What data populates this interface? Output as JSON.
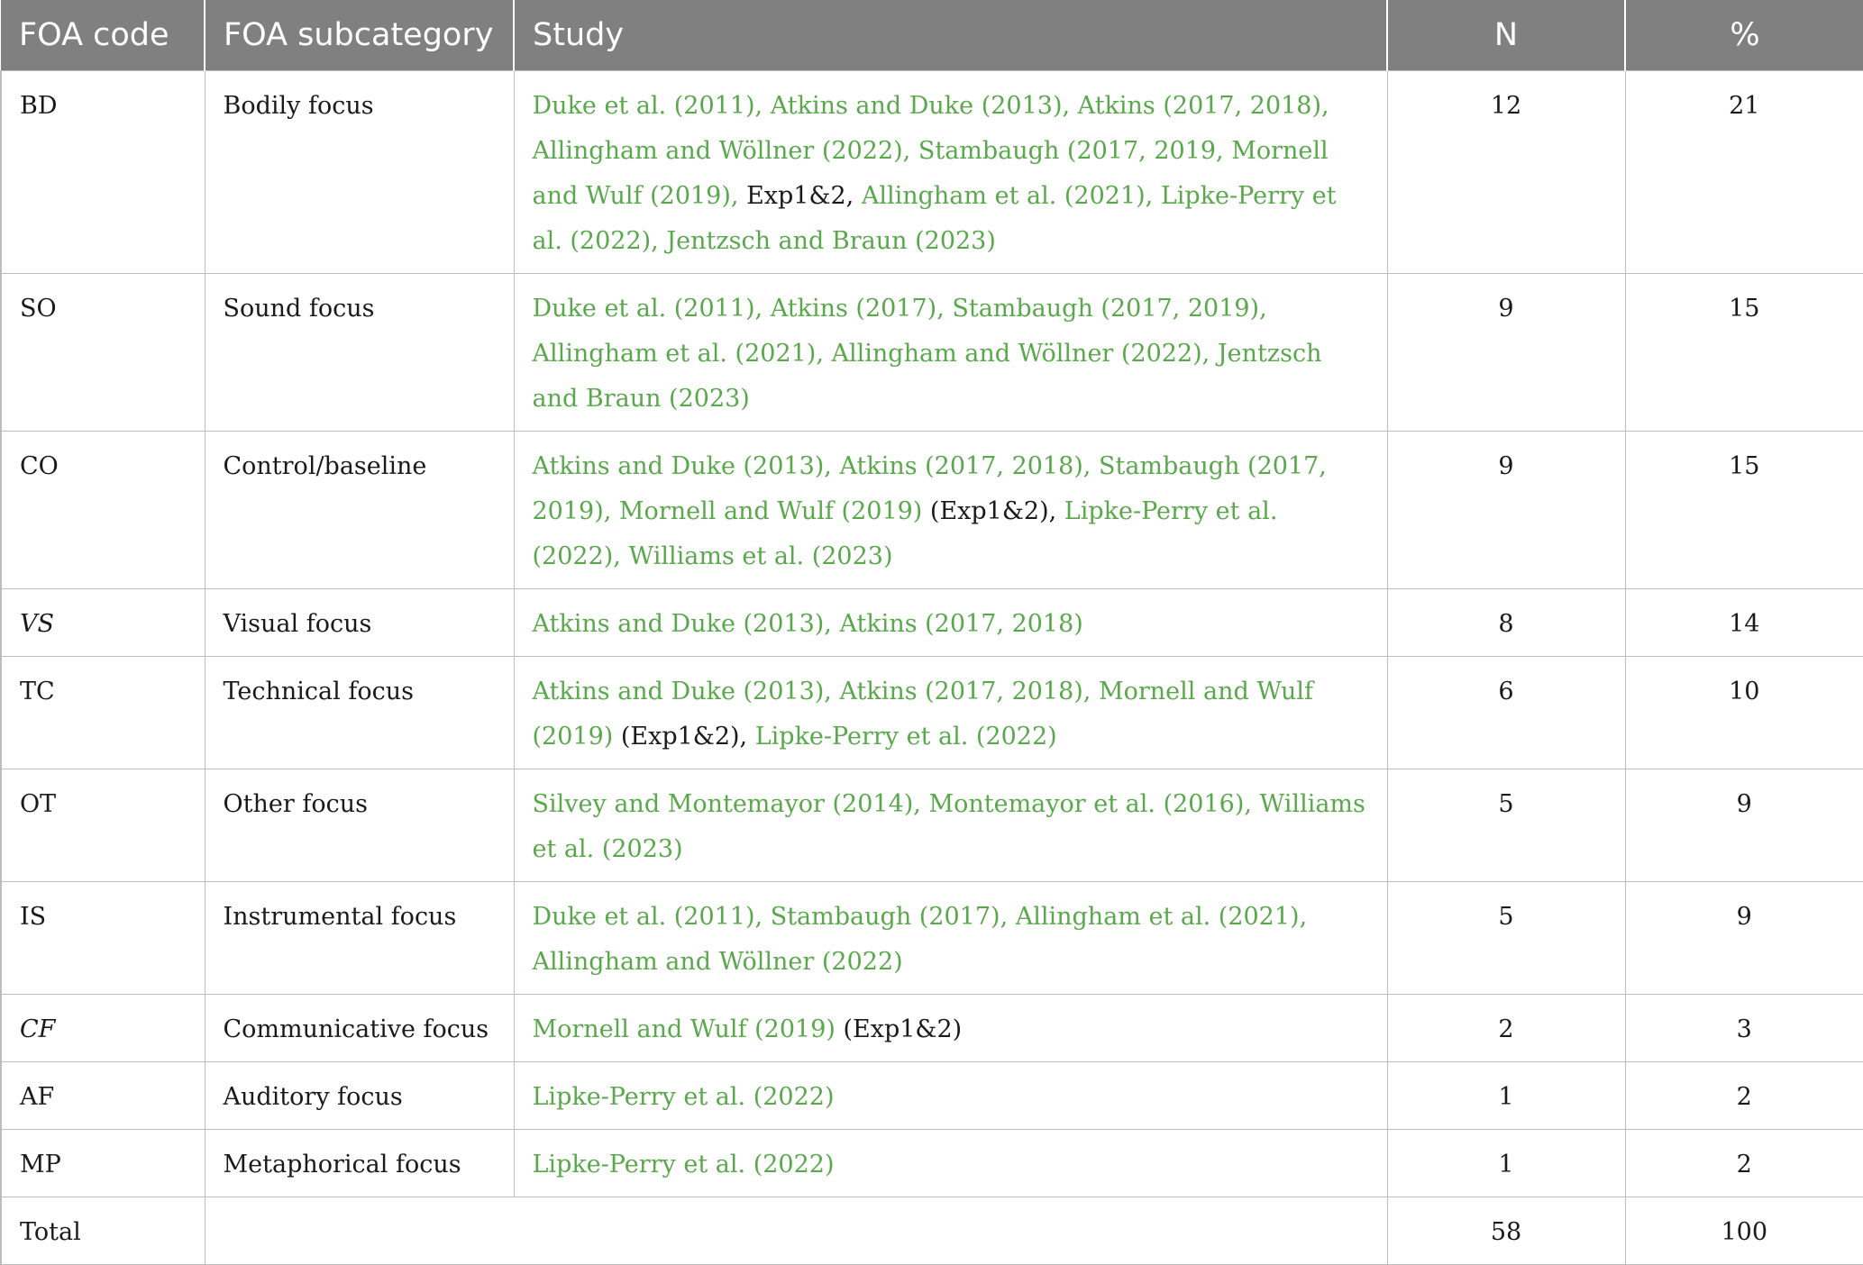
{
  "headers": {
    "code": "FOA code",
    "subcategory": "FOA subcategory",
    "study": "Study",
    "n": "N",
    "pct": "%"
  },
  "rows": [
    {
      "code": "BD",
      "subcategory": "Bodily focus",
      "study_ref1": "Duke et al. (2011), Atkins and Duke (2013), Atkins (2017, 2018), Allingham and Wöllner (2022), Stambaugh (2017, 2019, Mornell and Wulf (2019),",
      "study_plain1": " Exp1&2, ",
      "study_ref2": "Allingham et al. (2021), Lipke-Perry et al. (2022), Jentzsch and Braun (2023)",
      "n": "12",
      "pct": "21"
    },
    {
      "code": "SO",
      "subcategory": "Sound focus",
      "study_ref1": "Duke et al. (2011), Atkins (2017), Stambaugh (2017, 2019), Allingham et al. (2021), Allingham and Wöllner (2022), Jentzsch and Braun (2023)",
      "n": "9",
      "pct": "15"
    },
    {
      "code": "CO",
      "subcategory": "Control/baseline",
      "study_ref1": "Atkins and Duke (2013), Atkins (2017, 2018), Stambaugh (2017, 2019), Mornell and Wulf (2019)",
      "study_plain1": " (Exp1&2), ",
      "study_ref2": "Lipke-Perry et al. (2022), Williams et al. (2023)",
      "n": "9",
      "pct": "15"
    },
    {
      "code": "VS",
      "subcategory": "Visual focus",
      "study_ref1": "Atkins and Duke (2013), Atkins (2017, 2018)",
      "n": "8",
      "pct": "14"
    },
    {
      "code": "TC",
      "subcategory": "Technical focus",
      "study_ref1": "Atkins and Duke (2013), Atkins (2017, 2018), Mornell and Wulf (2019)",
      "study_plain1": " (Exp1&2), ",
      "study_ref2": "Lipke-Perry et al. (2022)",
      "n": "6",
      "pct": "10"
    },
    {
      "code": "OT",
      "subcategory": "Other focus",
      "study_ref1": "Silvey and Montemayor (2014), Montemayor et al. (2016), Williams et al. (2023)",
      "n": "5",
      "pct": "9"
    },
    {
      "code": "IS",
      "subcategory": "Instrumental focus",
      "study_ref1": "Duke et al. (2011), Stambaugh (2017), Allingham et al. (2021), Allingham and Wöllner (2022)",
      "n": "5",
      "pct": "9"
    },
    {
      "code": "CF",
      "subcategory": "Communicative focus",
      "study_ref1": "Mornell and Wulf (2019)",
      "study_plain1": " (Exp1&2)",
      "n": "2",
      "pct": "3"
    },
    {
      "code": "AF",
      "subcategory": "Auditory focus",
      "study_ref1": "Lipke-Perry et al. (2022)",
      "n": "1",
      "pct": "2"
    },
    {
      "code": "MP",
      "subcategory": "Metaphorical focus",
      "study_ref1": "Lipke-Perry et al. (2022)",
      "n": "1",
      "pct": "2"
    }
  ],
  "total": {
    "label": "Total",
    "n": "58",
    "pct": "100"
  },
  "colors": {
    "header_bg": "#7f807f",
    "header_text": "#ffffff",
    "link_green": "#5aa84c",
    "border": "#bdbdbd"
  }
}
